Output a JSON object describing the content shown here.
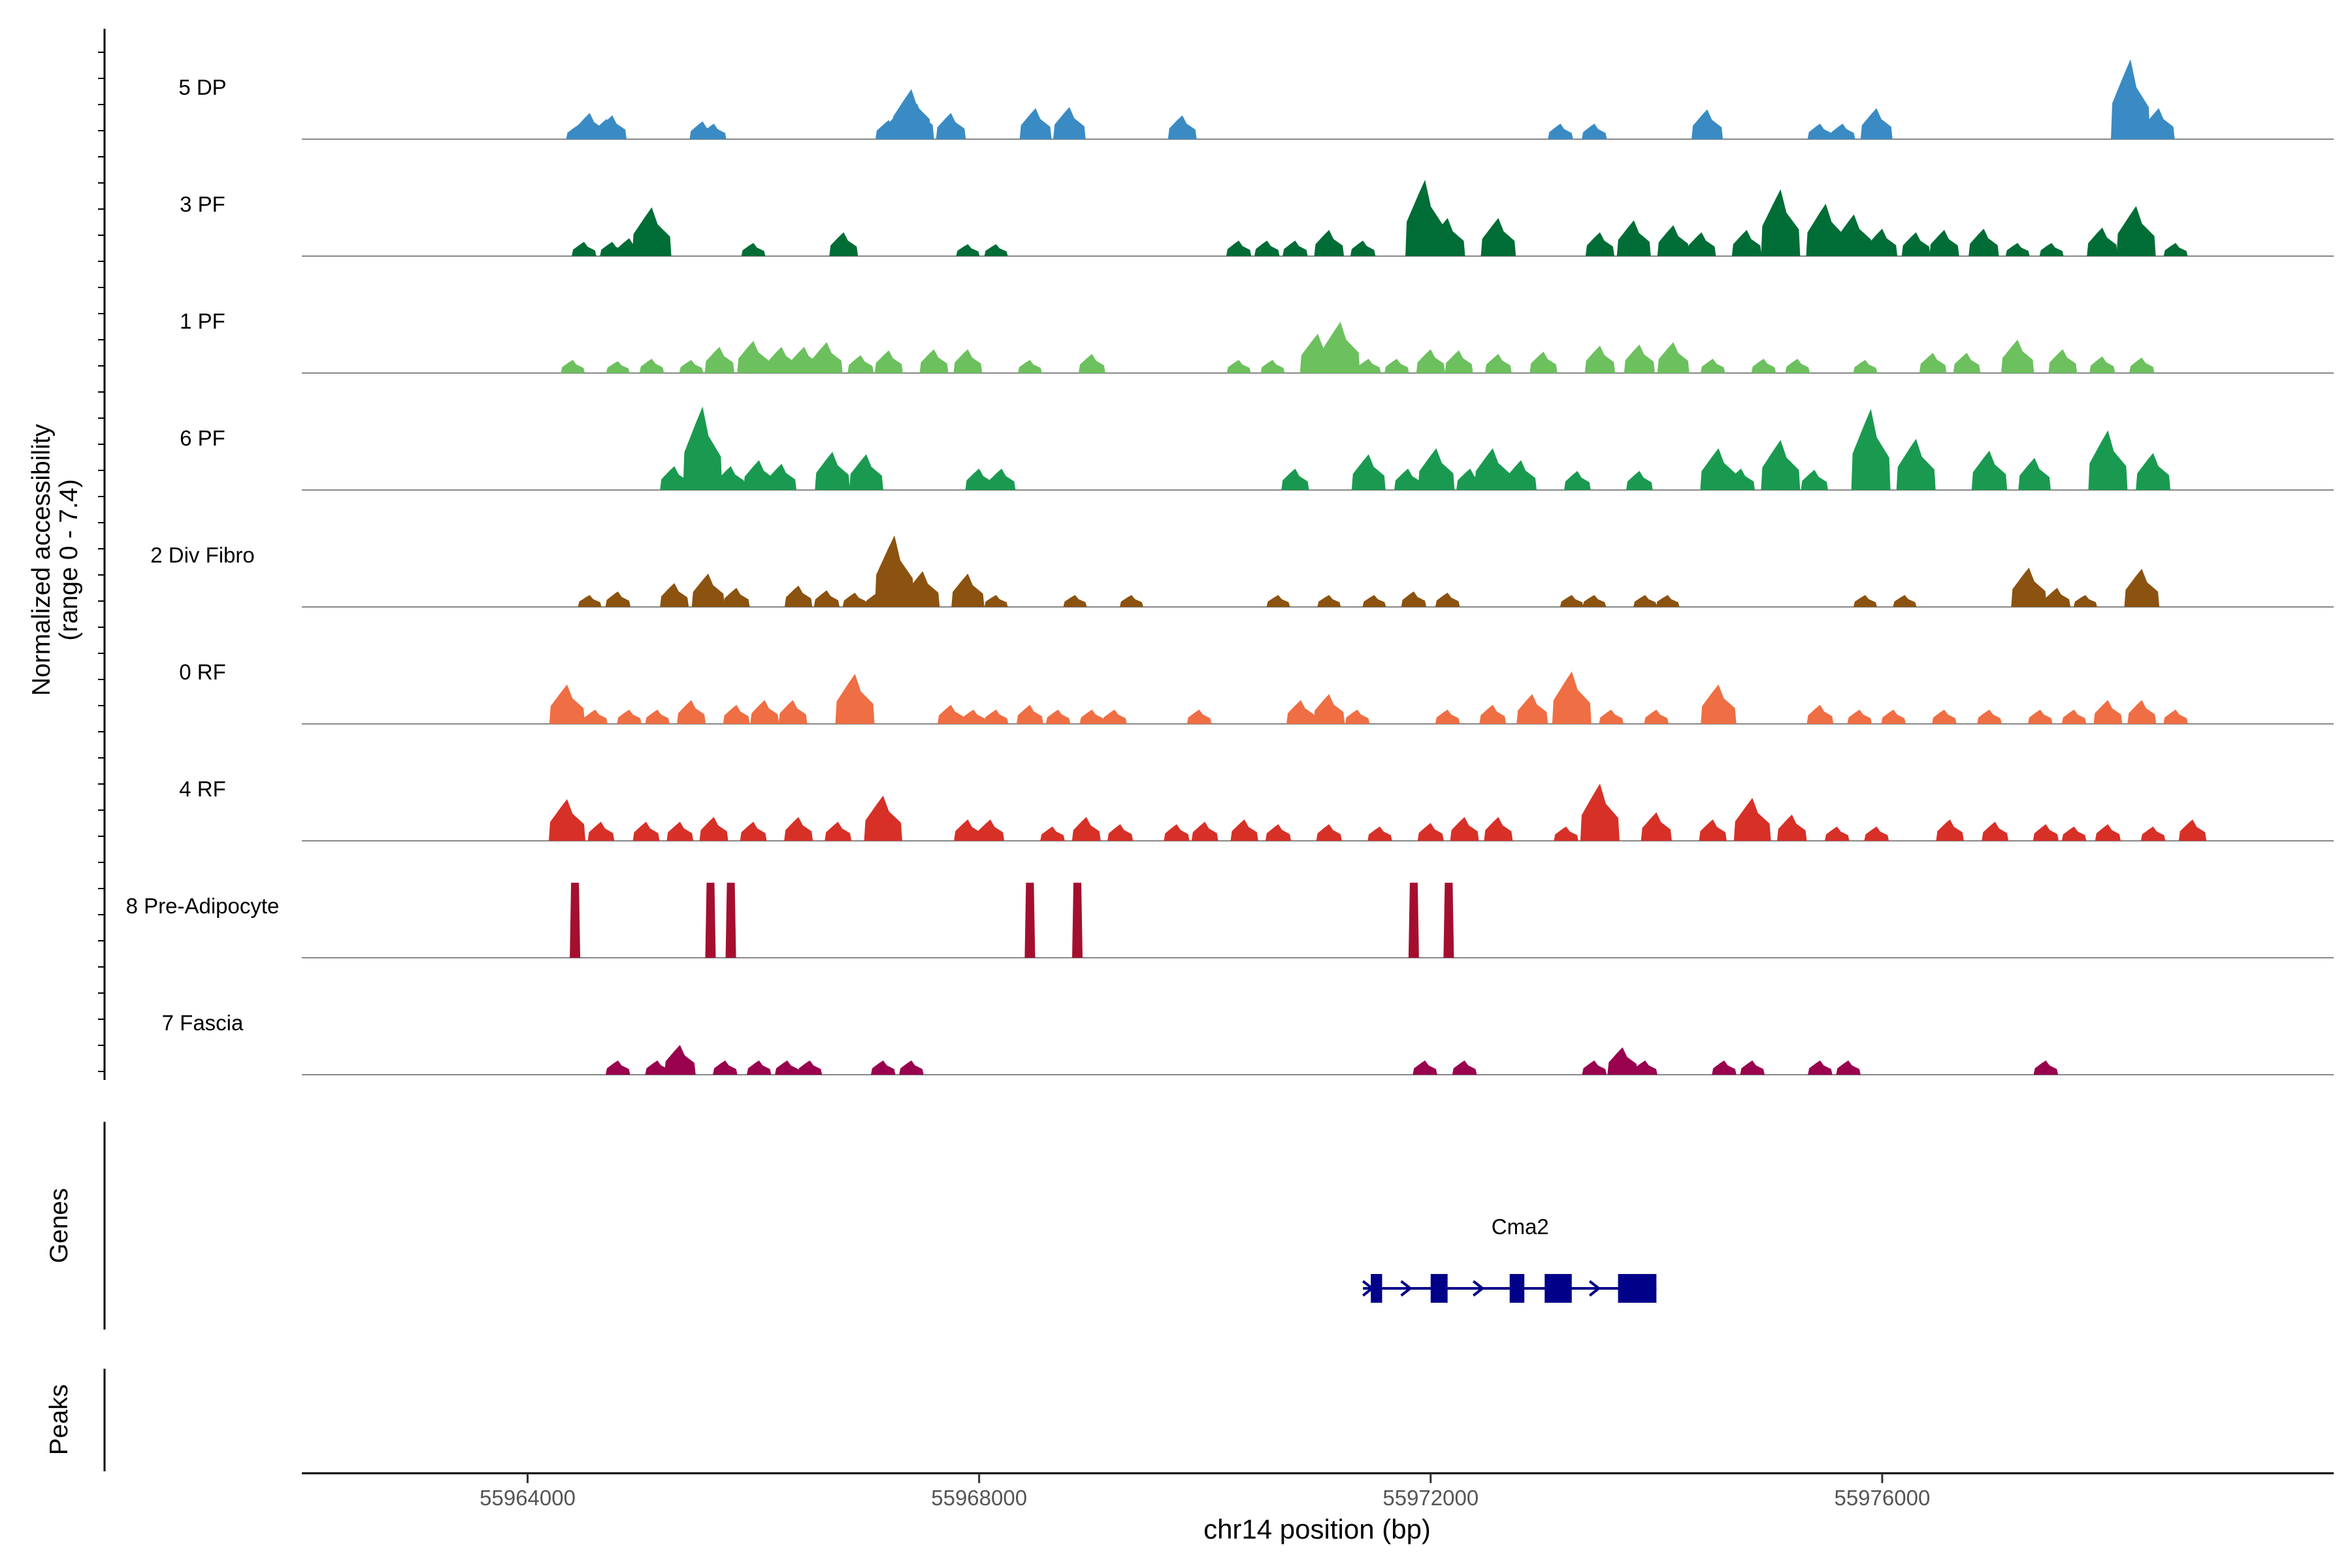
{
  "chart_data": {
    "type": "coverage",
    "xlabel": "chr14 position (bp)",
    "ylabel_line1": "Normalized accessibility",
    "ylabel_line2": "(range 0 - 7.4)",
    "xlim": [
      55962000,
      55980000
    ],
    "xticks": [
      55964000,
      55968000,
      55972000,
      55976000
    ],
    "xtick_labels": [
      "55964000",
      "55968000",
      "55972000",
      "55976000"
    ],
    "yrange": [
      0,
      7.4
    ],
    "panel_labels": {
      "genes": "Genes",
      "peaks": "Peaks"
    },
    "tracks": [
      {
        "name": "5 DP",
        "color": "#3a8bc4",
        "peaks": [
          [
            55964450,
            1.2
          ],
          [
            55964550,
            2.2
          ],
          [
            55964700,
            1.7
          ],
          [
            55964750,
            2.0
          ],
          [
            55965550,
            1.5
          ],
          [
            55965650,
            1.3
          ],
          [
            55967200,
            1.6
          ],
          [
            55967300,
            2.4
          ],
          [
            55967400,
            4.2
          ],
          [
            55967450,
            3.0
          ],
          [
            55967750,
            2.2
          ],
          [
            55968500,
            2.6
          ],
          [
            55968800,
            2.7
          ],
          [
            55969800,
            2.0
          ],
          [
            55973150,
            1.3
          ],
          [
            55973450,
            1.3
          ],
          [
            55974450,
            2.5
          ],
          [
            55975450,
            1.3
          ],
          [
            55975650,
            1.3
          ],
          [
            55975950,
            2.6
          ],
          [
            55978200,
            6.7
          ],
          [
            55978450,
            2.6
          ]
        ]
      },
      {
        "name": "3 PF",
        "color": "#006d36",
        "peaks": [
          [
            55964500,
            1.2
          ],
          [
            55964750,
            1.2
          ],
          [
            55964900,
            1.5
          ],
          [
            55965100,
            4.1
          ],
          [
            55966000,
            1.1
          ],
          [
            55966800,
            2.0
          ],
          [
            55967900,
            1.0
          ],
          [
            55968150,
            1.0
          ],
          [
            55970300,
            1.3
          ],
          [
            55970550,
            1.3
          ],
          [
            55970800,
            1.3
          ],
          [
            55971100,
            2.2
          ],
          [
            55971400,
            1.3
          ],
          [
            55971950,
            6.4
          ],
          [
            55972150,
            3.2
          ],
          [
            55972600,
            3.2
          ],
          [
            55973500,
            2.0
          ],
          [
            55973800,
            3.0
          ],
          [
            55974150,
            2.6
          ],
          [
            55974400,
            2.0
          ],
          [
            55974800,
            2.2
          ],
          [
            55975100,
            5.6
          ],
          [
            55975500,
            4.4
          ],
          [
            55975750,
            3.5
          ],
          [
            55976000,
            2.3
          ],
          [
            55976300,
            2.0
          ],
          [
            55976550,
            2.2
          ],
          [
            55976900,
            2.3
          ],
          [
            55977200,
            1.1
          ],
          [
            55977500,
            1.1
          ],
          [
            55977950,
            2.4
          ],
          [
            55978250,
            4.2
          ],
          [
            55978600,
            1.1
          ]
        ]
      },
      {
        "name": "1 PF",
        "color": "#6cc05e",
        "peaks": [
          [
            55964400,
            1.1
          ],
          [
            55964800,
            1.0
          ],
          [
            55965100,
            1.2
          ],
          [
            55965450,
            1.1
          ],
          [
            55965700,
            2.2
          ],
          [
            55966000,
            2.7
          ],
          [
            55966250,
            2.2
          ],
          [
            55966450,
            2.2
          ],
          [
            55966650,
            2.6
          ],
          [
            55966950,
            1.5
          ],
          [
            55967200,
            1.9
          ],
          [
            55967600,
            2.0
          ],
          [
            55967900,
            2.0
          ],
          [
            55968450,
            1.1
          ],
          [
            55969000,
            1.6
          ],
          [
            55970300,
            1.1
          ],
          [
            55970600,
            1.1
          ],
          [
            55971000,
            3.3
          ],
          [
            55971200,
            4.3
          ],
          [
            55971450,
            1.2
          ],
          [
            55971700,
            1.2
          ],
          [
            55972000,
            2.0
          ],
          [
            55972250,
            1.9
          ],
          [
            55972600,
            1.6
          ],
          [
            55973000,
            1.8
          ],
          [
            55973500,
            2.3
          ],
          [
            55973850,
            2.4
          ],
          [
            55974150,
            2.6
          ],
          [
            55974500,
            1.2
          ],
          [
            55974950,
            1.2
          ],
          [
            55975250,
            1.2
          ],
          [
            55975850,
            1.1
          ],
          [
            55976450,
            1.7
          ],
          [
            55976750,
            1.7
          ],
          [
            55977200,
            2.8
          ],
          [
            55977600,
            2.0
          ],
          [
            55977950,
            1.4
          ],
          [
            55978300,
            1.3
          ]
        ]
      },
      {
        "name": "6 PF",
        "color": "#1a9a50",
        "peaks": [
          [
            55965300,
            2.0
          ],
          [
            55965550,
            7.0
          ],
          [
            55965800,
            2.0
          ],
          [
            55966050,
            2.5
          ],
          [
            55966250,
            2.2
          ],
          [
            55966700,
            3.2
          ],
          [
            55967000,
            3.0
          ],
          [
            55968000,
            1.8
          ],
          [
            55968200,
            1.8
          ],
          [
            55970800,
            1.8
          ],
          [
            55971450,
            3.0
          ],
          [
            55971800,
            1.8
          ],
          [
            55972050,
            3.5
          ],
          [
            55972350,
            1.8
          ],
          [
            55972550,
            3.5
          ],
          [
            55972800,
            2.5
          ],
          [
            55973300,
            1.6
          ],
          [
            55973850,
            1.6
          ],
          [
            55974550,
            3.5
          ],
          [
            55974750,
            1.8
          ],
          [
            55975100,
            4.2
          ],
          [
            55975400,
            1.7
          ],
          [
            55975900,
            6.8
          ],
          [
            55976300,
            4.3
          ],
          [
            55976950,
            3.3
          ],
          [
            55977350,
            2.7
          ],
          [
            55978000,
            5.0
          ],
          [
            55978400,
            3.1
          ]
        ]
      },
      {
        "name": "2 Div Fibro",
        "color": "#8b5210",
        "peaks": [
          [
            55964550,
            1.0
          ],
          [
            55964800,
            1.3
          ],
          [
            55965300,
            2.0
          ],
          [
            55965600,
            2.8
          ],
          [
            55965850,
            1.6
          ],
          [
            55966400,
            1.8
          ],
          [
            55966650,
            1.4
          ],
          [
            55966900,
            1.2
          ],
          [
            55967100,
            1.2
          ],
          [
            55967250,
            6.0
          ],
          [
            55967500,
            3.0
          ],
          [
            55967900,
            2.8
          ],
          [
            55968150,
            1.0
          ],
          [
            55968850,
            1.0
          ],
          [
            55969350,
            1.0
          ],
          [
            55970650,
            1.0
          ],
          [
            55971100,
            1.0
          ],
          [
            55971500,
            1.0
          ],
          [
            55971850,
            1.3
          ],
          [
            55972150,
            1.2
          ],
          [
            55973250,
            1.0
          ],
          [
            55973450,
            1.0
          ],
          [
            55973900,
            1.0
          ],
          [
            55974100,
            1.0
          ],
          [
            55975850,
            1.0
          ],
          [
            55976200,
            1.0
          ],
          [
            55977300,
            3.3
          ],
          [
            55977550,
            1.6
          ],
          [
            55977800,
            1.0
          ],
          [
            55978300,
            3.2
          ]
        ]
      },
      {
        "name": "0 RF",
        "color": "#ef6e44",
        "peaks": [
          [
            55964350,
            3.3
          ],
          [
            55964600,
            1.2
          ],
          [
            55964900,
            1.2
          ],
          [
            55965150,
            1.2
          ],
          [
            55965450,
            2.0
          ],
          [
            55965850,
            1.6
          ],
          [
            55966100,
            2.0
          ],
          [
            55966350,
            2.0
          ],
          [
            55966900,
            4.2
          ],
          [
            55967750,
            1.6
          ],
          [
            55967950,
            1.2
          ],
          [
            55968150,
            1.2
          ],
          [
            55968450,
            1.6
          ],
          [
            55968700,
            1.2
          ],
          [
            55969000,
            1.2
          ],
          [
            55969200,
            1.2
          ],
          [
            55969950,
            1.2
          ],
          [
            55970850,
            2.0
          ],
          [
            55971100,
            2.5
          ],
          [
            55971350,
            1.2
          ],
          [
            55972150,
            1.2
          ],
          [
            55972550,
            1.6
          ],
          [
            55972900,
            2.5
          ],
          [
            55973250,
            4.4
          ],
          [
            55973600,
            1.2
          ],
          [
            55974000,
            1.2
          ],
          [
            55974550,
            3.3
          ],
          [
            55975450,
            1.6
          ],
          [
            55975800,
            1.2
          ],
          [
            55976100,
            1.2
          ],
          [
            55976550,
            1.2
          ],
          [
            55976950,
            1.2
          ],
          [
            55977400,
            1.2
          ],
          [
            55977700,
            1.2
          ],
          [
            55978000,
            2.0
          ],
          [
            55978300,
            2.0
          ],
          [
            55978600,
            1.2
          ]
        ]
      },
      {
        "name": "4 RF",
        "color": "#d73027",
        "peaks": [
          [
            55964350,
            3.5
          ],
          [
            55964650,
            1.6
          ],
          [
            55965050,
            1.6
          ],
          [
            55965350,
            1.6
          ],
          [
            55965650,
            2.0
          ],
          [
            55966000,
            1.6
          ],
          [
            55966400,
            2.0
          ],
          [
            55966750,
            1.6
          ],
          [
            55967150,
            3.8
          ],
          [
            55967900,
            1.8
          ],
          [
            55968100,
            1.8
          ],
          [
            55968650,
            1.2
          ],
          [
            55968950,
            2.0
          ],
          [
            55969250,
            1.4
          ],
          [
            55969750,
            1.4
          ],
          [
            55970000,
            1.6
          ],
          [
            55970350,
            1.8
          ],
          [
            55970650,
            1.4
          ],
          [
            55971100,
            1.4
          ],
          [
            55971550,
            1.2
          ],
          [
            55972000,
            1.5
          ],
          [
            55972300,
            2.0
          ],
          [
            55972600,
            2.0
          ],
          [
            55973200,
            1.2
          ],
          [
            55973500,
            4.8
          ],
          [
            55974000,
            2.4
          ],
          [
            55974500,
            1.8
          ],
          [
            55974850,
            3.6
          ],
          [
            55975200,
            2.2
          ],
          [
            55975600,
            1.2
          ],
          [
            55975950,
            1.2
          ],
          [
            55976600,
            1.8
          ],
          [
            55977000,
            1.6
          ],
          [
            55977450,
            1.4
          ],
          [
            55977700,
            1.2
          ],
          [
            55978000,
            1.4
          ],
          [
            55978400,
            1.2
          ],
          [
            55978750,
            1.8
          ]
        ]
      },
      {
        "name": "8 Pre-Adipocyte",
        "color": "#a50f2f",
        "peaks": [
          [
            55964420,
            6.3
          ],
          [
            55965620,
            6.3
          ],
          [
            55965800,
            6.3
          ],
          [
            55968450,
            6.3
          ],
          [
            55968870,
            6.3
          ],
          [
            55971850,
            6.3
          ],
          [
            55972160,
            6.3
          ]
        ]
      },
      {
        "name": "7 Fascia",
        "color": "#99004e",
        "peaks": [
          [
            55964800,
            1.2
          ],
          [
            55965150,
            1.2
          ],
          [
            55965350,
            2.5
          ],
          [
            55965750,
            1.2
          ],
          [
            55966050,
            1.2
          ],
          [
            55966300,
            1.2
          ],
          [
            55966500,
            1.2
          ],
          [
            55967150,
            1.2
          ],
          [
            55967400,
            1.2
          ],
          [
            55971950,
            1.2
          ],
          [
            55972300,
            1.2
          ],
          [
            55973450,
            1.2
          ],
          [
            55973700,
            2.3
          ],
          [
            55973900,
            1.2
          ],
          [
            55974600,
            1.2
          ],
          [
            55974850,
            1.2
          ],
          [
            55975450,
            1.2
          ],
          [
            55975700,
            1.2
          ],
          [
            55977450,
            1.2
          ]
        ]
      }
    ],
    "genes": [
      {
        "name": "Cma2",
        "strand": "+",
        "start": 55971470,
        "end": 55974000,
        "exons": [
          [
            55971470,
            55971570
          ],
          [
            55972000,
            55972150
          ],
          [
            55972700,
            55972830
          ],
          [
            55973010,
            55973250
          ],
          [
            55973660,
            55974000
          ]
        ]
      }
    ]
  }
}
